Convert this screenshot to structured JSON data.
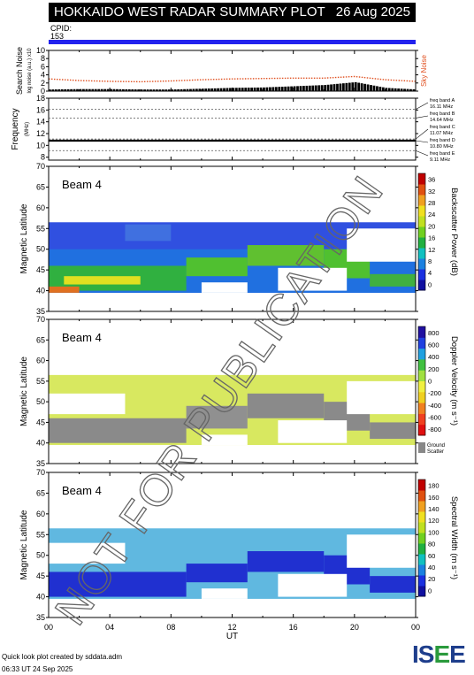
{
  "header": {
    "title": "HOKKAIDO WEST RADAR SUMMARY PLOT",
    "date": "26 Aug 2025",
    "cpid_label": "CPID:",
    "cpid_value": "153"
  },
  "footer": {
    "created_by": "Quick look plot created by sddata.adm",
    "created_at": "06:33 UT 24 Sep 2025",
    "logo": "ISEE"
  },
  "colors": {
    "noise": "#e05020",
    "background": "#000000",
    "cpid": "#2222ee",
    "ground_scatter": "#888888"
  },
  "chart_data": [
    {
      "type": "area",
      "id": "noise",
      "ylabel": "Search Noise",
      "ylabel2": "log noise (a.u.) x10",
      "right_label": "Sky Noise",
      "ylim": [
        0,
        10
      ],
      "yticks": [
        "0",
        "2",
        "4",
        "6",
        "8",
        "10"
      ],
      "x": [
        0,
        2,
        4,
        6,
        8,
        10,
        12,
        14,
        16,
        18,
        20,
        22,
        24
      ],
      "sky_noise": [
        3.0,
        2.6,
        2.4,
        2.3,
        2.5,
        2.8,
        3.0,
        3.1,
        3.2,
        3.2,
        3.6,
        2.8,
        2.4
      ],
      "background": [
        0.4,
        0.5,
        0.5,
        0.4,
        0.4,
        0.6,
        0.8,
        0.9,
        1.2,
        1.5,
        2.2,
        0.8,
        0.4
      ]
    },
    {
      "type": "line",
      "id": "frequency",
      "ylabel": "Frequency",
      "yunit": "(MHz)",
      "ylim": [
        7.5,
        18
      ],
      "yticks": [
        "8",
        "10",
        "12",
        "14",
        "16",
        "18"
      ],
      "operating_freq": 10.8,
      "bands": [
        {
          "name": "freq band A",
          "freq": "16.11 MHz",
          "value": 16.11
        },
        {
          "name": "freq band B",
          "freq": "14.64 MHz",
          "value": 14.64
        },
        {
          "name": "freq band C",
          "freq": "11.07 MHz",
          "value": 11.07
        },
        {
          "name": "freq band D",
          "freq": "10.80 MHz",
          "value": 10.8
        },
        {
          "name": "freq band E",
          "freq": "9.11 MHz",
          "value": 9.11
        }
      ]
    },
    {
      "type": "heatmap",
      "id": "power",
      "beam": "Beam 4",
      "ylabel": "Magnetic Latitude",
      "ylim": [
        35,
        70
      ],
      "yticks": [
        "35",
        "40",
        "45",
        "50",
        "55",
        "60",
        "65",
        "70"
      ],
      "colorbar_label": "Backscatter Power (dB)",
      "colorbar_ticks": [
        "0",
        "4",
        "8",
        "12",
        "16",
        "20",
        "24",
        "28",
        "32",
        "36"
      ],
      "colorbar_colors": [
        "#1010a0",
        "#1a30e0",
        "#1a80e0",
        "#10c0c0",
        "#20b040",
        "#70d020",
        "#c0e020",
        "#f0e020",
        "#f0a020",
        "#e05010",
        "#c00000"
      ],
      "cells": [
        {
          "x0": 0,
          "x1": 24,
          "y0": 39.5,
          "y1": 56.5,
          "c": "#3050e0"
        },
        {
          "x0": 0,
          "x1": 24,
          "y0": 39.5,
          "y1": 50,
          "c": "#2070e0"
        },
        {
          "x0": 0,
          "x1": 9,
          "y0": 40,
          "y1": 46,
          "c": "#30b040"
        },
        {
          "x0": 9,
          "x1": 13,
          "y0": 43.5,
          "y1": 48,
          "c": "#50c030"
        },
        {
          "x0": 13,
          "x1": 18,
          "y0": 46,
          "y1": 51,
          "c": "#60c030"
        },
        {
          "x0": 18,
          "x1": 21,
          "y0": 43,
          "y1": 50,
          "c": "#50c030"
        },
        {
          "x0": 21,
          "x1": 24,
          "y0": 41,
          "y1": 44,
          "c": "#40b040"
        },
        {
          "x0": 1,
          "x1": 6,
          "y0": 41.5,
          "y1": 43.5,
          "c": "#e0e020"
        },
        {
          "x0": 0,
          "x1": 2,
          "y0": 39.5,
          "y1": 41,
          "c": "#e07020"
        },
        {
          "x0": 10,
          "x1": 13,
          "y0": 39.5,
          "y1": 42,
          "c": "#ffffff"
        },
        {
          "x0": 15,
          "x1": 19.5,
          "y0": 40,
          "y1": 45.5,
          "c": "#ffffff"
        },
        {
          "x0": 19.5,
          "x1": 24,
          "y0": 47,
          "y1": 55,
          "c": "#ffffff"
        },
        {
          "x0": 5,
          "x1": 8,
          "y0": 52,
          "y1": 56,
          "c": "#4070e0"
        }
      ]
    },
    {
      "type": "heatmap",
      "id": "velocity",
      "beam": "Beam 4",
      "ylabel": "Magnetic Latitude",
      "ylim": [
        35,
        70
      ],
      "yticks": [
        "35",
        "40",
        "45",
        "50",
        "55",
        "60",
        "65",
        "70"
      ],
      "colorbar_label": "Doppler Velocity (m s⁻¹)",
      "colorbar_ticks": [
        "-800",
        "-600",
        "-400",
        "-200",
        "0",
        "200",
        "400",
        "600",
        "800"
      ],
      "colorbar_colors": [
        "#e01010",
        "#f04020",
        "#f08020",
        "#f0d020",
        "#f0f040",
        "#a0e040",
        "#40c040",
        "#20a0e0",
        "#2040e0",
        "#2010a0"
      ],
      "ground_label": "Ground",
      "ground_label2": "Scatter",
      "cells": [
        {
          "x0": 0,
          "x1": 24,
          "y0": 39.5,
          "y1": 56.5,
          "c": "#d8e860"
        },
        {
          "x0": 0,
          "x1": 9,
          "y0": 40,
          "y1": 46,
          "c": "#8a8a8a"
        },
        {
          "x0": 9,
          "x1": 13,
          "y0": 43.5,
          "y1": 49,
          "c": "#909090"
        },
        {
          "x0": 13,
          "x1": 18,
          "y0": 46,
          "y1": 52,
          "c": "#8a8a8a"
        },
        {
          "x0": 18,
          "x1": 21,
          "y0": 43,
          "y1": 50,
          "c": "#8a8a8a"
        },
        {
          "x0": 21,
          "x1": 24,
          "y0": 41,
          "y1": 45,
          "c": "#8a8a8a"
        },
        {
          "x0": 10,
          "x1": 13,
          "y0": 39.5,
          "y1": 42,
          "c": "#ffffff"
        },
        {
          "x0": 15,
          "x1": 19.5,
          "y0": 40,
          "y1": 45.5,
          "c": "#ffffff"
        },
        {
          "x0": 19.5,
          "x1": 24,
          "y0": 47,
          "y1": 55,
          "c": "#ffffff"
        },
        {
          "x0": 0,
          "x1": 5,
          "y0": 47,
          "y1": 52,
          "c": "#ffffff"
        }
      ]
    },
    {
      "type": "heatmap",
      "id": "width",
      "beam": "Beam 4",
      "ylabel": "Magnetic Latitude",
      "ylim": [
        35,
        70
      ],
      "yticks": [
        "35",
        "40",
        "45",
        "50",
        "55",
        "60",
        "65",
        "70"
      ],
      "xlabel": "UT",
      "xticks": [
        "00",
        "04",
        "08",
        "12",
        "16",
        "20",
        "00"
      ],
      "colorbar_label": "Spectral Width (m s⁻¹)",
      "colorbar_ticks": [
        "0",
        "20",
        "40",
        "60",
        "80",
        "100",
        "120",
        "140",
        "160",
        "180"
      ],
      "colorbar_colors": [
        "#1010a0",
        "#1a30e0",
        "#1a80e0",
        "#10c0c0",
        "#20b040",
        "#70d020",
        "#c0e020",
        "#f0e020",
        "#f0a020",
        "#e05010",
        "#c00000"
      ],
      "cells": [
        {
          "x0": 0,
          "x1": 24,
          "y0": 39.5,
          "y1": 56.5,
          "c": "#60b8e0"
        },
        {
          "x0": 0,
          "x1": 9,
          "y0": 40,
          "y1": 46,
          "c": "#2030d0"
        },
        {
          "x0": 9,
          "x1": 13,
          "y0": 43.5,
          "y1": 48,
          "c": "#2030d0"
        },
        {
          "x0": 13,
          "x1": 18,
          "y0": 46,
          "y1": 51,
          "c": "#2030d0"
        },
        {
          "x0": 18,
          "x1": 21,
          "y0": 43,
          "y1": 50,
          "c": "#2030d0"
        },
        {
          "x0": 21,
          "x1": 24,
          "y0": 41,
          "y1": 45,
          "c": "#2030d0"
        },
        {
          "x0": 10,
          "x1": 13,
          "y0": 39.5,
          "y1": 42,
          "c": "#ffffff"
        },
        {
          "x0": 15,
          "x1": 19.5,
          "y0": 40,
          "y1": 45.5,
          "c": "#ffffff"
        },
        {
          "x0": 19.5,
          "x1": 24,
          "y0": 47,
          "y1": 55,
          "c": "#ffffff"
        },
        {
          "x0": 0,
          "x1": 5,
          "y0": 48,
          "y1": 53,
          "c": "#ffffff"
        }
      ]
    }
  ],
  "watermark": "NOT FOR PUBLICATION"
}
